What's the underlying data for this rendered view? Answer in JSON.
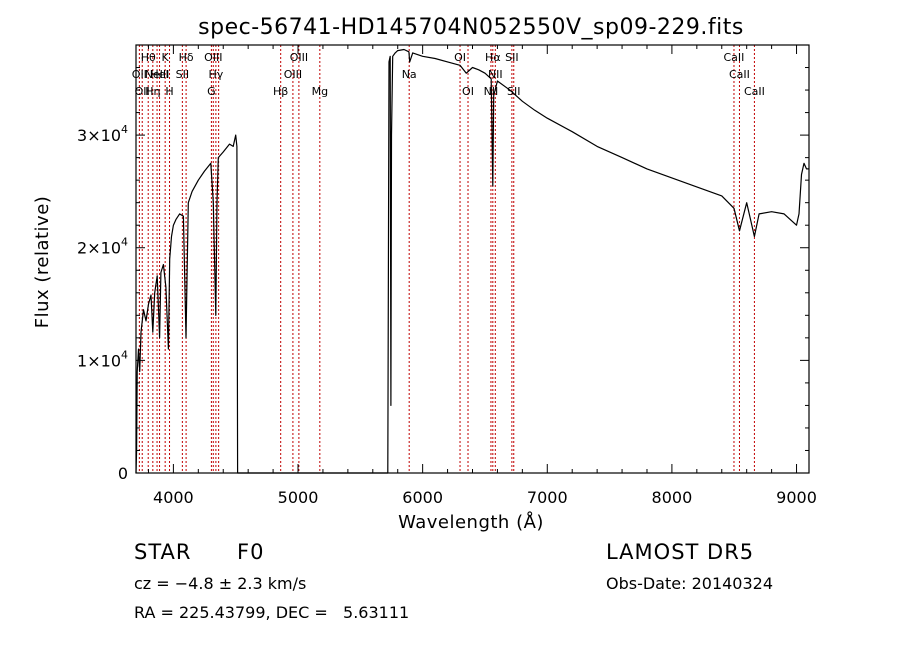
{
  "chart_data": {
    "type": "line",
    "title": "spec-56741-HD145704N052550V_sp09-229.fits",
    "xlabel": "Wavelength (Å)",
    "ylabel": "Flux (relative)",
    "xlim": [
      3700,
      9100
    ],
    "ylim": [
      0,
      38000
    ],
    "xticks": [
      4000,
      5000,
      6000,
      7000,
      8000,
      9000
    ],
    "xtick_labels": [
      "4000",
      "5000",
      "6000",
      "7000",
      "8000",
      "9000"
    ],
    "yticks": [
      0,
      10000,
      20000,
      30000
    ],
    "ytick_labels": [
      {
        "mant": "0",
        "exp": ""
      },
      {
        "mant": "1×10",
        "exp": "4"
      },
      {
        "mant": "2×10",
        "exp": "4"
      },
      {
        "mant": "3×10",
        "exp": "4"
      }
    ],
    "grid": false,
    "series": [
      {
        "color": "#000000",
        "x": [
          3700,
          3705,
          3710,
          3720,
          3730,
          3740,
          3760,
          3780,
          3800,
          3820,
          3835,
          3850,
          3870,
          3889,
          3900,
          3920,
          3940,
          3960,
          3970,
          3985,
          4000,
          4020,
          4050,
          4080,
          4101,
          4120,
          4150,
          4200,
          4250,
          4300,
          4320,
          4340,
          4350,
          4360,
          4400,
          4450,
          4480,
          4500,
          4510,
          4515,
          5720,
          5730,
          5740,
          5745,
          5750,
          5760,
          5780,
          5800,
          5850,
          5890,
          5896,
          5920,
          6000,
          6100,
          6200,
          6300,
          6350,
          6400,
          6450,
          6500,
          6550,
          6563,
          6570,
          6600,
          6700,
          6800,
          6900,
          7000,
          7200,
          7400,
          7600,
          7800,
          8000,
          8200,
          8400,
          8498,
          8542,
          8600,
          8662,
          8700,
          8800,
          8900,
          9000,
          9020,
          9040,
          9060,
          9080,
          9100
        ],
        "y": [
          0,
          2000,
          9000,
          11000,
          9000,
          12500,
          14500,
          13500,
          15000,
          15800,
          12500,
          16000,
          17500,
          12000,
          17800,
          18500,
          16500,
          11000,
          19000,
          21000,
          22000,
          22500,
          23000,
          22800,
          12000,
          24000,
          25000,
          26000,
          26800,
          27500,
          24000,
          14000,
          24000,
          28000,
          28500,
          29200,
          29000,
          30000,
          29000,
          0,
          0,
          36500,
          37000,
          6000,
          30000,
          37000,
          37300,
          37500,
          37600,
          37400,
          36500,
          37300,
          37000,
          36800,
          36500,
          36200,
          35500,
          36000,
          35800,
          35500,
          35000,
          25500,
          33500,
          34800,
          34000,
          33000,
          32200,
          31500,
          30300,
          29000,
          28000,
          27000,
          26200,
          25400,
          24600,
          23500,
          21500,
          24000,
          21000,
          23000,
          23200,
          23000,
          22000,
          23000,
          26500,
          27500,
          27000,
          27000
        ]
      }
    ],
    "lines": [
      {
        "wl": 3727,
        "r": 2,
        "label": "OII"
      },
      {
        "wl": 3750,
        "r": 3,
        "label": "OII"
      },
      {
        "wl": 3798,
        "r": 1,
        "label": "Hθ"
      },
      {
        "wl": 3835,
        "r": 3,
        "label": "Hη"
      },
      {
        "wl": 3869,
        "r": 2,
        "label": "NeIII"
      },
      {
        "wl": 3889,
        "r": 2,
        "label": "HeI"
      },
      {
        "wl": 3934,
        "r": 1,
        "label": "K"
      },
      {
        "wl": 3969,
        "r": 3,
        "label": "H"
      },
      {
        "wl": 4072,
        "r": 2,
        "label": "SII"
      },
      {
        "wl": 4102,
        "r": 1,
        "label": "Hδ"
      },
      {
        "wl": 4305,
        "r": 3,
        "label": "G"
      },
      {
        "wl": 4320,
        "r": 1,
        "label": "OIII"
      },
      {
        "wl": 4341,
        "r": 2,
        "label": "Hγ"
      },
      {
        "wl": 4363,
        "r": 2,
        "label": ""
      },
      {
        "wl": 4861,
        "r": 3,
        "label": "Hβ"
      },
      {
        "wl": 4959,
        "r": 2,
        "label": "OIII"
      },
      {
        "wl": 5007,
        "r": 1,
        "label": "OIII"
      },
      {
        "wl": 5175,
        "r": 3,
        "label": "Mg"
      },
      {
        "wl": 5892,
        "r": 2,
        "label": "Na"
      },
      {
        "wl": 6300,
        "r": 1,
        "label": "OI"
      },
      {
        "wl": 6364,
        "r": 3,
        "label": "OI"
      },
      {
        "wl": 6548,
        "r": 3,
        "label": "NII"
      },
      {
        "wl": 6563,
        "r": 1,
        "label": "Hα"
      },
      {
        "wl": 6583,
        "r": 2,
        "label": "NII"
      },
      {
        "wl": 6716,
        "r": 1,
        "label": "SII"
      },
      {
        "wl": 6731,
        "r": 3,
        "label": "SII"
      },
      {
        "wl": 8498,
        "r": 1,
        "label": "CaII"
      },
      {
        "wl": 8542,
        "r": 2,
        "label": "CaII"
      },
      {
        "wl": 8662,
        "r": 3,
        "label": "CaII"
      }
    ]
  },
  "footer": {
    "class": "STAR",
    "subclass": "F0",
    "survey": "LAMOST DR5",
    "cz": "cz = −4.8 ± 2.3 km/s",
    "obsdate": "Obs-Date: 20140324",
    "radec": "RA = 225.43799, DEC =   5.63111"
  }
}
